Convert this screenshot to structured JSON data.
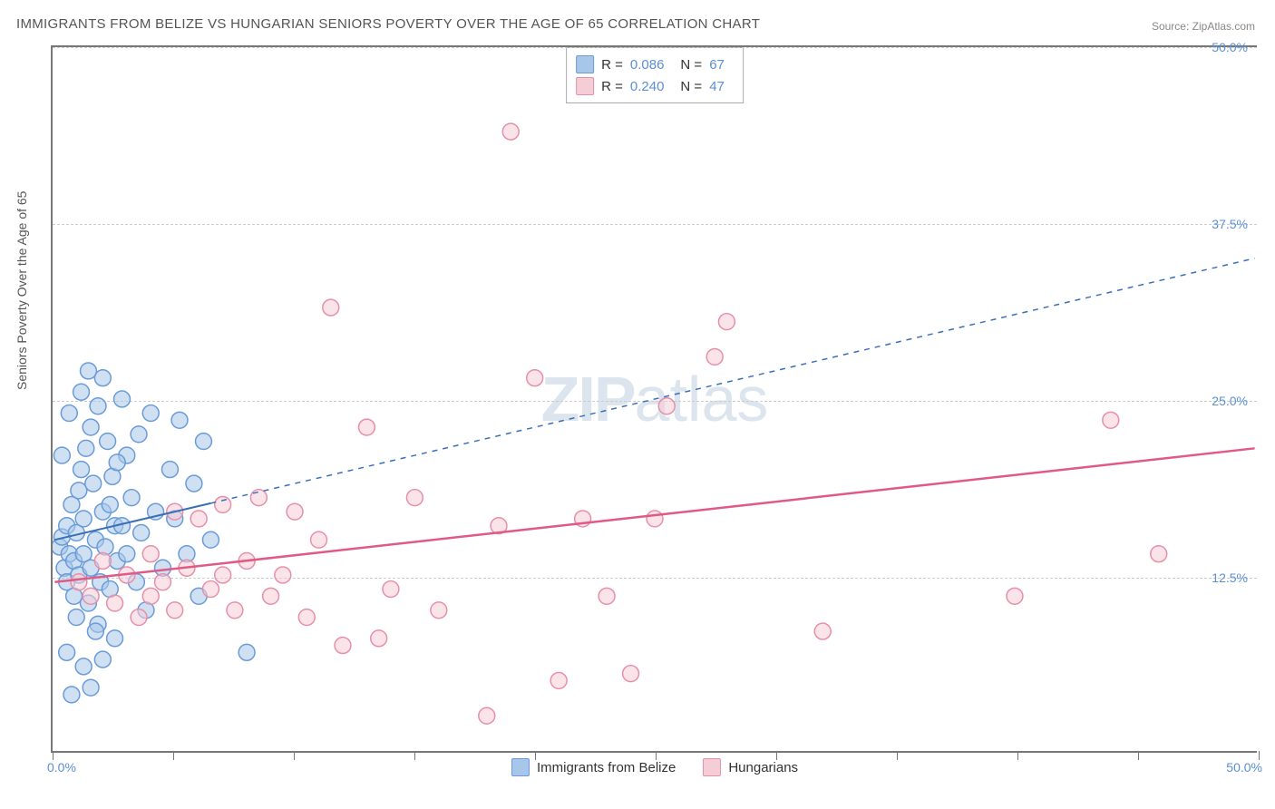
{
  "title": "IMMIGRANTS FROM BELIZE VS HUNGARIAN SENIORS POVERTY OVER THE AGE OF 65 CORRELATION CHART",
  "source": "Source: ZipAtlas.com",
  "watermark_a": "ZIP",
  "watermark_b": "atlas",
  "chart": {
    "type": "scatter",
    "y_axis_label": "Seniors Poverty Over the Age of 65",
    "xlim": [
      0,
      50
    ],
    "ylim": [
      0,
      50
    ],
    "x_tick_positions": [
      0,
      5,
      10,
      15,
      20,
      25,
      30,
      35,
      40,
      45,
      50
    ],
    "x_tick_labels": {
      "0": "0.0%",
      "50": "50.0%"
    },
    "y_grid_positions": [
      12.5,
      25.0,
      37.5,
      50.0
    ],
    "y_tick_labels": [
      "12.5%",
      "25.0%",
      "37.5%",
      "50.0%"
    ],
    "grid_color": "#cccccc",
    "axis_color": "#777777",
    "label_color": "#5b8fd6",
    "background_color": "#ffffff",
    "marker_radius": 9,
    "marker_stroke_width": 1.5,
    "series": [
      {
        "name": "Immigrants from Belize",
        "fill_color": "#a7c6ea",
        "stroke_color": "#6a9bd8",
        "fill_opacity": 0.55,
        "R": "0.086",
        "N": "67",
        "trend": {
          "x1": 0,
          "y1": 15.0,
          "x2": 50,
          "y2": 35.0,
          "solid_until_x": 6.5,
          "color": "#3b6fb5",
          "width": 2,
          "dash": "6,6"
        },
        "points": [
          [
            0.2,
            14.5
          ],
          [
            0.3,
            15.2
          ],
          [
            0.4,
            13.0
          ],
          [
            0.5,
            16.0
          ],
          [
            0.5,
            12.0
          ],
          [
            0.6,
            14.0
          ],
          [
            0.7,
            17.5
          ],
          [
            0.8,
            13.5
          ],
          [
            0.8,
            11.0
          ],
          [
            0.9,
            15.5
          ],
          [
            1.0,
            18.5
          ],
          [
            1.0,
            12.5
          ],
          [
            1.1,
            20.0
          ],
          [
            1.2,
            14.0
          ],
          [
            1.2,
            16.5
          ],
          [
            1.3,
            21.5
          ],
          [
            1.4,
            10.5
          ],
          [
            1.5,
            13.0
          ],
          [
            1.5,
            23.0
          ],
          [
            1.6,
            19.0
          ],
          [
            1.7,
            15.0
          ],
          [
            1.8,
            24.5
          ],
          [
            1.8,
            9.0
          ],
          [
            1.9,
            12.0
          ],
          [
            2.0,
            17.0
          ],
          [
            2.0,
            26.5
          ],
          [
            2.1,
            14.5
          ],
          [
            2.2,
            22.0
          ],
          [
            2.3,
            11.5
          ],
          [
            2.4,
            19.5
          ],
          [
            2.5,
            16.0
          ],
          [
            2.5,
            8.0
          ],
          [
            2.6,
            13.5
          ],
          [
            2.8,
            25.0
          ],
          [
            3.0,
            21.0
          ],
          [
            3.0,
            14.0
          ],
          [
            3.2,
            18.0
          ],
          [
            3.4,
            12.0
          ],
          [
            3.5,
            22.5
          ],
          [
            3.6,
            15.5
          ],
          [
            3.8,
            10.0
          ],
          [
            4.0,
            24.0
          ],
          [
            4.2,
            17.0
          ],
          [
            4.5,
            13.0
          ],
          [
            4.8,
            20.0
          ],
          [
            5.0,
            16.5
          ],
          [
            5.2,
            23.5
          ],
          [
            5.5,
            14.0
          ],
          [
            5.8,
            19.0
          ],
          [
            6.0,
            11.0
          ],
          [
            6.2,
            22.0
          ],
          [
            6.5,
            15.0
          ],
          [
            0.3,
            21.0
          ],
          [
            0.6,
            24.0
          ],
          [
            0.9,
            9.5
          ],
          [
            1.1,
            25.5
          ],
          [
            1.4,
            27.0
          ],
          [
            1.7,
            8.5
          ],
          [
            2.0,
            6.5
          ],
          [
            2.3,
            17.5
          ],
          [
            2.6,
            20.5
          ],
          [
            1.2,
            6.0
          ],
          [
            1.5,
            4.5
          ],
          [
            0.7,
            4.0
          ],
          [
            0.5,
            7.0
          ],
          [
            8.0,
            7.0
          ],
          [
            2.8,
            16.0
          ]
        ]
      },
      {
        "name": "Hungarians",
        "fill_color": "#f5cdd7",
        "stroke_color": "#e78fa8",
        "fill_opacity": 0.55,
        "R": "0.240",
        "N": "47",
        "trend": {
          "x1": 0,
          "y1": 12.0,
          "x2": 50,
          "y2": 21.5,
          "solid_until_x": 50,
          "color": "#e05a85",
          "width": 2.5,
          "dash": ""
        },
        "points": [
          [
            1.0,
            12.0
          ],
          [
            1.5,
            11.0
          ],
          [
            2.0,
            13.5
          ],
          [
            2.5,
            10.5
          ],
          [
            3.0,
            12.5
          ],
          [
            3.5,
            9.5
          ],
          [
            4.0,
            14.0
          ],
          [
            4.0,
            11.0
          ],
          [
            4.5,
            12.0
          ],
          [
            5.0,
            17.0
          ],
          [
            5.0,
            10.0
          ],
          [
            5.5,
            13.0
          ],
          [
            6.0,
            16.5
          ],
          [
            6.5,
            11.5
          ],
          [
            7.0,
            12.5
          ],
          [
            7.0,
            17.5
          ],
          [
            7.5,
            10.0
          ],
          [
            8.0,
            13.5
          ],
          [
            8.5,
            18.0
          ],
          [
            9.0,
            11.0
          ],
          [
            9.5,
            12.5
          ],
          [
            10.0,
            17.0
          ],
          [
            10.5,
            9.5
          ],
          [
            11.0,
            15.0
          ],
          [
            11.5,
            31.5
          ],
          [
            12.0,
            7.5
          ],
          [
            13.0,
            23.0
          ],
          [
            13.5,
            8.0
          ],
          [
            14.0,
            11.5
          ],
          [
            15.0,
            18.0
          ],
          [
            16.0,
            10.0
          ],
          [
            18.0,
            2.5
          ],
          [
            18.5,
            16.0
          ],
          [
            19.0,
            44.0
          ],
          [
            20.0,
            26.5
          ],
          [
            21.0,
            5.0
          ],
          [
            22.0,
            16.5
          ],
          [
            23.0,
            11.0
          ],
          [
            24.0,
            5.5
          ],
          [
            25.0,
            16.5
          ],
          [
            25.5,
            24.5
          ],
          [
            27.5,
            28.0
          ],
          [
            28.0,
            30.5
          ],
          [
            32.0,
            8.5
          ],
          [
            40.0,
            11.0
          ],
          [
            44.0,
            23.5
          ],
          [
            46.0,
            14.0
          ]
        ]
      }
    ]
  }
}
